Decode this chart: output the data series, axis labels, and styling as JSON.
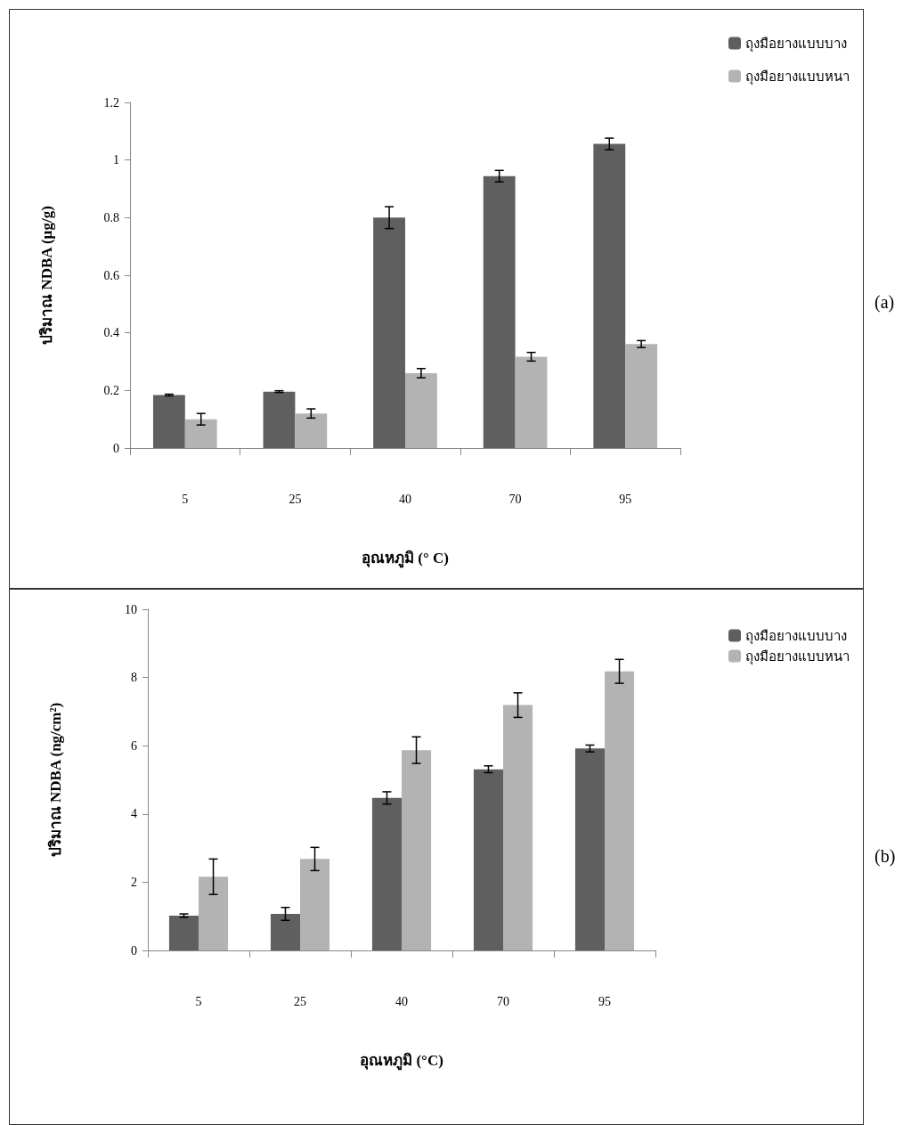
{
  "chart_data": [
    {
      "type": "bar",
      "categories": [
        "5",
        "25",
        "40",
        "70",
        "95"
      ],
      "xlabel": "อุณหภูมิ (° C)",
      "ylabel": "ปริมาณ NDBA (µg/g)",
      "ylim": [
        0,
        1.2
      ],
      "yticks": [
        0,
        0.2,
        0.4,
        0.6,
        0.8,
        1,
        1.2
      ],
      "grid": false,
      "legend": "top right",
      "annotations": [
        "(a)"
      ],
      "series": [
        {
          "name": "ถุงมือยางแบบบาง",
          "color": "#5f5f5f",
          "values": [
            0.184,
            0.196,
            0.8,
            0.944,
            1.056
          ],
          "errors": [
            0.003,
            0.003,
            0.038,
            0.02,
            0.02
          ]
        },
        {
          "name": "ถุงมือยางแบบหนา",
          "color": "#b3b3b3",
          "values": [
            0.1,
            0.12,
            0.26,
            0.317,
            0.361
          ],
          "errors": [
            0.02,
            0.016,
            0.016,
            0.015,
            0.012
          ]
        }
      ]
    },
    {
      "type": "bar",
      "categories": [
        "5",
        "25",
        "40",
        "70",
        "95"
      ],
      "xlabel": "อุณหภูมิ (°C)",
      "ylabel": "ปริมาณ NDBA (ng/cm²)",
      "ylim": [
        0,
        10
      ],
      "yticks": [
        0,
        2,
        4,
        6,
        8,
        10
      ],
      "grid": false,
      "legend": "top right",
      "annotations": [
        "(b)"
      ],
      "series": [
        {
          "name": "ถุงมือยางแบบบาง",
          "color": "#5f5f5f",
          "values": [
            1.02,
            1.07,
            4.47,
            5.31,
            5.92
          ],
          "errors": [
            0.05,
            0.19,
            0.18,
            0.1,
            0.1
          ]
        },
        {
          "name": "ถุงมือยางแบบหนา",
          "color": "#b3b3b3",
          "values": [
            2.16,
            2.68,
            5.87,
            7.19,
            8.18
          ],
          "errors": [
            0.52,
            0.34,
            0.39,
            0.36,
            0.35
          ]
        }
      ]
    }
  ]
}
